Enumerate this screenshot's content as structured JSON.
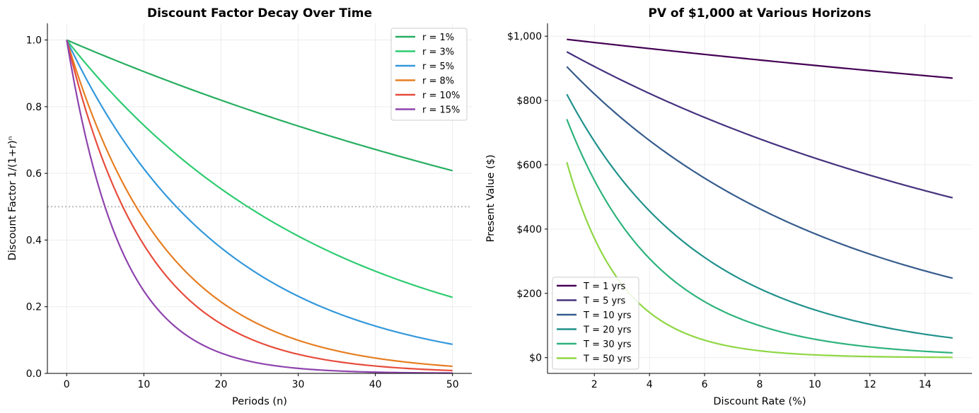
{
  "chart_data": [
    {
      "type": "line",
      "title": "Discount Factor Decay Over Time",
      "xlabel": "Periods (n)",
      "ylabel": "Discount Factor  1/(1+r)ⁿ",
      "xlim": [
        -2.5,
        52.5
      ],
      "ylim": [
        0,
        1.05
      ],
      "xticks": [
        "0",
        "10",
        "20",
        "30",
        "40",
        "50"
      ],
      "yticks": [
        "0.0",
        "0.2",
        "0.4",
        "0.6",
        "0.8",
        "1.0"
      ],
      "grid": true,
      "legend": "top-right",
      "reference_line": {
        "y": 0.5,
        "style": "dotted",
        "color": "#bbbbbb"
      },
      "x": [
        0,
        10,
        20,
        30,
        40,
        50
      ],
      "series": [
        {
          "name": "r = 1%",
          "rate": 0.01,
          "color": "#27ae60",
          "values": [
            1,
            0.9053,
            0.8195,
            0.7419,
            0.6717,
            0.608
          ]
        },
        {
          "name": "r = 3%",
          "rate": 0.03,
          "color": "#2ecc71",
          "values": [
            1,
            0.7441,
            0.5537,
            0.412,
            0.3066,
            0.2281
          ]
        },
        {
          "name": "r = 5%",
          "rate": 0.05,
          "color": "#3498db",
          "values": [
            1,
            0.6139,
            0.3769,
            0.2314,
            0.142,
            0.0872
          ]
        },
        {
          "name": "r = 8%",
          "rate": 0.08,
          "color": "#e67e22",
          "values": [
            1,
            0.4632,
            0.2145,
            0.0994,
            0.046,
            0.0213
          ]
        },
        {
          "name": "r = 10%",
          "rate": 0.1,
          "color": "#e74c3c",
          "values": [
            1,
            0.3855,
            0.1486,
            0.0573,
            0.0221,
            0.0085
          ]
        },
        {
          "name": "r = 15%",
          "rate": 0.15,
          "color": "#8e44ad",
          "values": [
            1,
            0.2472,
            0.0611,
            0.0151,
            0.0037,
            0.0009
          ]
        }
      ]
    },
    {
      "type": "line",
      "title": "PV of $1,000 at Various Horizons",
      "xlabel": "Discount Rate (%)",
      "ylabel": "Present Value ($)",
      "xlim": [
        0.3,
        15.7
      ],
      "ylim": [
        -49,
        1040
      ],
      "xticks": [
        "2",
        "4",
        "6",
        "8",
        "10",
        "12",
        "14"
      ],
      "yticks": [
        "$0",
        "$200",
        "$400",
        "$600",
        "$800",
        "$1,000"
      ],
      "grid": true,
      "legend": "bottom-left",
      "x": [
        1,
        5,
        10,
        15
      ],
      "series": [
        {
          "name": "T = 1 yrs",
          "years": 1,
          "color": "#440154",
          "values": [
            990.1,
            952.4,
            909.1,
            869.6
          ]
        },
        {
          "name": "T = 5 yrs",
          "years": 5,
          "color": "#46327e",
          "values": [
            951.5,
            783.5,
            620.9,
            497.2
          ]
        },
        {
          "name": "T = 10 yrs",
          "years": 10,
          "color": "#365c8d",
          "values": [
            905.3,
            613.9,
            385.5,
            247.2
          ]
        },
        {
          "name": "T = 20 yrs",
          "years": 20,
          "color": "#21918c",
          "values": [
            819.5,
            376.9,
            148.6,
            61.1
          ]
        },
        {
          "name": "T = 30 yrs",
          "years": 30,
          "color": "#2eb37c",
          "values": [
            741.9,
            231.4,
            57.3,
            15.1
          ]
        },
        {
          "name": "T = 50 yrs",
          "years": 50,
          "color": "#8fd744",
          "values": [
            608.0,
            87.2,
            8.5,
            0.9
          ]
        }
      ]
    }
  ]
}
